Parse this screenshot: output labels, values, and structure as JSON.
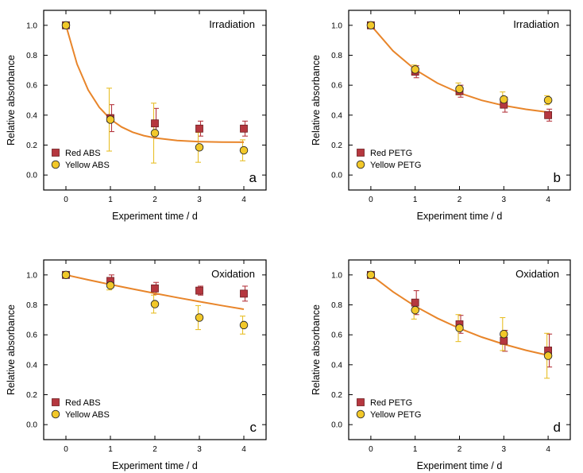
{
  "colors": {
    "red_marker": "#b5373f",
    "red_marker_edge": "#6e1e22",
    "yellow_marker": "#f2c829",
    "yellow_marker_edge": "#2a2a2a",
    "red_error": "#b5373f",
    "yellow_error": "#e8bf28",
    "fit_line": "#e8852a",
    "axis": "#000000"
  },
  "chart_data": [
    {
      "type": "scatter",
      "title": "Irradiation",
      "panel_label": "a",
      "xlabel": "Experiment time / d",
      "ylabel": "Relative absorbance",
      "xlim": [
        -0.5,
        4.5
      ],
      "ylim": [
        -0.1,
        1.1
      ],
      "xticks": [
        "0",
        "1",
        "2",
        "3",
        "4"
      ],
      "yticks": [
        "0.0",
        "0.2",
        "0.4",
        "0.6",
        "0.8",
        "1.0"
      ],
      "legend_position": "bottom-left",
      "series": [
        {
          "name": "Red ABS",
          "marker": "square",
          "x": [
            0,
            1,
            2,
            3,
            4
          ],
          "y": [
            1.0,
            0.38,
            0.345,
            0.31,
            0.31
          ],
          "err": [
            0.0,
            0.09,
            0.1,
            0.05,
            0.05
          ]
        },
        {
          "name": "Yellow ABS",
          "marker": "circle",
          "x": [
            0,
            1,
            2,
            3,
            4
          ],
          "y": [
            1.0,
            0.37,
            0.28,
            0.185,
            0.165
          ],
          "err": [
            0.0,
            0.21,
            0.2,
            0.1,
            0.07
          ]
        }
      ],
      "fit": {
        "x": [
          0,
          0.25,
          0.5,
          0.75,
          1,
          1.25,
          1.5,
          1.75,
          2,
          2.5,
          3,
          3.5,
          4
        ],
        "y": [
          1.0,
          0.741,
          0.568,
          0.452,
          0.373,
          0.321,
          0.286,
          0.263,
          0.248,
          0.231,
          0.223,
          0.22,
          0.219
        ]
      }
    },
    {
      "type": "scatter",
      "title": "Irradiation",
      "panel_label": "b",
      "xlabel": "Experiment time / d",
      "ylabel": "Relative absorbance",
      "xlim": [
        -0.5,
        4.5
      ],
      "ylim": [
        -0.1,
        1.1
      ],
      "xticks": [
        "0",
        "1",
        "2",
        "3",
        "4"
      ],
      "yticks": [
        "0.0",
        "0.2",
        "0.4",
        "0.6",
        "0.8",
        "1.0"
      ],
      "legend_position": "bottom-left",
      "series": [
        {
          "name": "Red PETG",
          "marker": "square",
          "x": [
            0,
            1,
            2,
            3,
            4
          ],
          "y": [
            1.0,
            0.69,
            0.56,
            0.47,
            0.4
          ],
          "err": [
            0.0,
            0.04,
            0.04,
            0.05,
            0.04
          ]
        },
        {
          "name": "Yellow PETG",
          "marker": "circle",
          "x": [
            0,
            1,
            2,
            3,
            4
          ],
          "y": [
            1.0,
            0.705,
            0.575,
            0.505,
            0.5
          ],
          "err": [
            0.0,
            0.03,
            0.04,
            0.05,
            0.03
          ]
        }
      ],
      "fit": {
        "x": [
          0,
          0.5,
          1,
          1.5,
          2,
          2.5,
          3,
          3.5,
          4
        ],
        "y": [
          1.0,
          0.829,
          0.704,
          0.614,
          0.548,
          0.499,
          0.464,
          0.439,
          0.42
        ]
      }
    },
    {
      "type": "scatter",
      "title": "Oxidation",
      "panel_label": "c",
      "xlabel": "Experiment time / d",
      "ylabel": "Relative absorbance",
      "xlim": [
        -0.5,
        4.5
      ],
      "ylim": [
        -0.1,
        1.1
      ],
      "xticks": [
        "0",
        "1",
        "2",
        "3",
        "4"
      ],
      "yticks": [
        "0.0",
        "0.2",
        "0.4",
        "0.6",
        "0.8",
        "1.0"
      ],
      "legend_position": "bottom-left",
      "series": [
        {
          "name": "Red ABS",
          "marker": "square",
          "x": [
            0,
            1,
            2,
            3,
            4
          ],
          "y": [
            1.0,
            0.96,
            0.91,
            0.895,
            0.875
          ],
          "err": [
            0.0,
            0.04,
            0.04,
            0.03,
            0.05
          ]
        },
        {
          "name": "Yellow ABS",
          "marker": "circle",
          "x": [
            0,
            1,
            2,
            3,
            4
          ],
          "y": [
            1.0,
            0.93,
            0.805,
            0.715,
            0.665
          ],
          "err": [
            0.0,
            0.03,
            0.06,
            0.08,
            0.06
          ]
        }
      ],
      "fit": {
        "x": [
          0,
          0.5,
          1,
          1.5,
          2,
          2.5,
          3,
          3.5,
          4
        ],
        "y": [
          1.0,
          0.967,
          0.936,
          0.906,
          0.877,
          0.849,
          0.822,
          0.796,
          0.771
        ]
      }
    },
    {
      "type": "scatter",
      "title": "Oxidation",
      "panel_label": "d",
      "xlabel": "Experiment time / d",
      "ylabel": "Relative absorbance",
      "xlim": [
        -0.5,
        4.5
      ],
      "ylim": [
        -0.1,
        1.1
      ],
      "xticks": [
        "0",
        "1",
        "2",
        "3",
        "4"
      ],
      "yticks": [
        "0.0",
        "0.2",
        "0.4",
        "0.6",
        "0.8",
        "1.0"
      ],
      "legend_position": "bottom-left",
      "series": [
        {
          "name": "Red PETG",
          "marker": "square",
          "x": [
            0,
            1,
            2,
            3,
            4
          ],
          "y": [
            1.0,
            0.815,
            0.67,
            0.56,
            0.495
          ],
          "err": [
            0.0,
            0.08,
            0.06,
            0.07,
            0.11
          ]
        },
        {
          "name": "Yellow PETG",
          "marker": "circle",
          "x": [
            0,
            1,
            2,
            3,
            4
          ],
          "y": [
            1.0,
            0.765,
            0.645,
            0.605,
            0.46
          ],
          "err": [
            0.0,
            0.06,
            0.09,
            0.11,
            0.15
          ]
        }
      ],
      "fit": {
        "x": [
          0,
          0.5,
          1,
          1.5,
          2,
          2.5,
          3,
          3.5,
          4
        ],
        "y": [
          1.0,
          0.887,
          0.791,
          0.711,
          0.643,
          0.585,
          0.537,
          0.497,
          0.463
        ]
      }
    }
  ]
}
